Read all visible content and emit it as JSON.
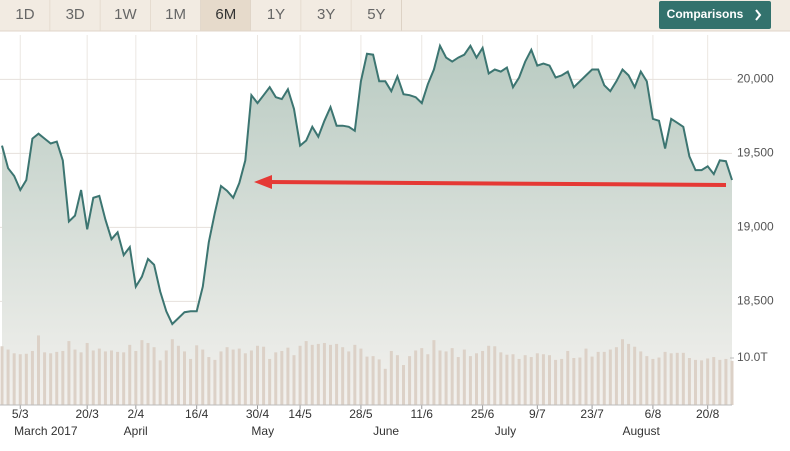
{
  "toolbar": {
    "ranges": [
      "1D",
      "3D",
      "1W",
      "1M",
      "6M",
      "1Y",
      "3Y",
      "5Y"
    ],
    "selected": 4,
    "button": "Comparisons"
  },
  "chart_data": [
    {
      "type": "area",
      "color": "#3c7571",
      "grid": true,
      "categories": [
        null,
        null,
        null,
        "5/3",
        null,
        null,
        null,
        null,
        null,
        null,
        null,
        null,
        null,
        null,
        "20/3",
        null,
        null,
        null,
        null,
        null,
        null,
        null,
        "2/4",
        null,
        null,
        null,
        null,
        null,
        null,
        null,
        null,
        null,
        "16/4",
        null,
        null,
        null,
        null,
        null,
        null,
        null,
        null,
        null,
        "30/4",
        null,
        null,
        null,
        null,
        null,
        null,
        "14/5",
        null,
        null,
        null,
        null,
        null,
        null,
        null,
        null,
        null,
        "28/5",
        null,
        null,
        null,
        null,
        null,
        null,
        null,
        null,
        null,
        "11/6",
        null,
        null,
        null,
        null,
        null,
        null,
        null,
        null,
        null,
        "25/6",
        null,
        null,
        null,
        null,
        null,
        null,
        null,
        null,
        "9/7",
        null,
        null,
        null,
        null,
        null,
        null,
        null,
        null,
        "23/7",
        null,
        null,
        null,
        null,
        null,
        null,
        null,
        null,
        null,
        "6/8",
        null,
        null,
        null,
        null,
        null,
        null,
        null,
        null,
        "20/8",
        null,
        null,
        null,
        null
      ],
      "month_labels": [
        null,
        null,
        "March 2017",
        null,
        null,
        null,
        null,
        null,
        null,
        null,
        null,
        null,
        null,
        null,
        null,
        null,
        null,
        null,
        null,
        null,
        "April",
        null,
        null,
        null,
        null,
        null,
        null,
        null,
        null,
        null,
        null,
        null,
        null,
        null,
        null,
        null,
        null,
        null,
        null,
        null,
        null,
        "May",
        null,
        null,
        null,
        null,
        null,
        null,
        null,
        null,
        null,
        null,
        null,
        null,
        null,
        null,
        null,
        null,
        null,
        null,
        null,
        "June",
        null,
        null,
        null,
        null,
        null,
        null,
        null,
        null,
        null,
        null,
        null,
        null,
        null,
        null,
        null,
        null,
        null,
        null,
        null,
        "July",
        null,
        null,
        null,
        null,
        null,
        null,
        null,
        null,
        null,
        null,
        null,
        null,
        null,
        null,
        null,
        null,
        null,
        null,
        null,
        null,
        "August",
        null,
        null,
        null,
        null,
        null,
        null,
        null,
        null,
        null,
        null,
        null,
        null,
        null,
        null,
        null,
        null,
        null,
        null
      ],
      "values": [
        19553,
        19400,
        19347,
        19253,
        19320,
        19600,
        19633,
        19600,
        19567,
        19580,
        19453,
        19040,
        19080,
        19253,
        18987,
        19200,
        19213,
        19053,
        18920,
        18967,
        18813,
        18867,
        18600,
        18667,
        18787,
        18747,
        18567,
        18433,
        18347,
        18387,
        18427,
        18433,
        18433,
        18600,
        18900,
        19100,
        19280,
        19247,
        19200,
        19300,
        19453,
        19893,
        19840,
        19893,
        19947,
        19880,
        19867,
        19933,
        19800,
        19553,
        19587,
        19680,
        19613,
        19720,
        19813,
        19687,
        19687,
        19680,
        19653,
        19987,
        20173,
        20167,
        19987,
        19987,
        19920,
        20020,
        19900,
        19893,
        19880,
        19840,
        19967,
        20067,
        20227,
        20147,
        20120,
        20147,
        20167,
        20227,
        20147,
        20213,
        20040,
        20067,
        20053,
        20080,
        19947,
        20013,
        20120,
        20200,
        20093,
        20107,
        20093,
        20013,
        20027,
        20053,
        19947,
        19987,
        20027,
        20067,
        20067,
        19960,
        19920,
        19987,
        20067,
        20027,
        19947,
        20053,
        19987,
        19733,
        19720,
        19533,
        19733,
        19707,
        19680,
        19480,
        19387,
        19387,
        19413,
        19360,
        19453,
        19447,
        19320
      ],
      "ylim": [
        17800,
        20300
      ],
      "yticks": [
        {
          "value": 18500,
          "label": "18,500"
        },
        {
          "value": 19000,
          "label": "19,000"
        },
        {
          "value": 19500,
          "label": "19,500"
        },
        {
          "value": 20000,
          "label": "20,000"
        }
      ]
    },
    {
      "type": "bar",
      "color": "#dcd1c7",
      "values": [
        12.5,
        11.8,
        11,
        10.8,
        10.9,
        11.5,
        14.8,
        11.2,
        11,
        11.3,
        11.5,
        13.6,
        11.8,
        11.2,
        13.2,
        11.6,
        12,
        11.4,
        11.6,
        11.3,
        11.2,
        12.8,
        11.5,
        13.8,
        13.2,
        12.3,
        9.5,
        11.6,
        14,
        12.6,
        11.4,
        9.8,
        12.7,
        11.8,
        10.2,
        9.6,
        11.4,
        12.3,
        11.8,
        12,
        11,
        11.6,
        12.6,
        12.4,
        9.8,
        11.2,
        11.5,
        12.2,
        10.6,
        12.6,
        13.6,
        12.8,
        13,
        13.2,
        12.8,
        13,
        12.3,
        11.4,
        12.8,
        12,
        10.3,
        10.4,
        9.7,
        7.7,
        11.5,
        10.6,
        8.5,
        10.4,
        11.6,
        12.1,
        10.8,
        13.8,
        11.6,
        11.4,
        12.1,
        10.2,
        11.8,
        10.4,
        11,
        11.5,
        12.6,
        12.5,
        11.2,
        10.7,
        10.8,
        9.8,
        10.6,
        10.2,
        11,
        10.8,
        10.6,
        9.6,
        9.8,
        11.5,
        10,
        10.1,
        12,
        10.3,
        11.3,
        11.3,
        11.8,
        12.3,
        14,
        13,
        12.4,
        11.4,
        10.4,
        9.8,
        10.1,
        11.3,
        11,
        11.1,
        11.1,
        10,
        9.6,
        9.5,
        9.9,
        10.2,
        9.6,
        9.8,
        9.4
      ],
      "ylim": [
        0,
        15
      ],
      "yticks": [
        {
          "value": 10,
          "label": "10.0T"
        }
      ]
    }
  ]
}
